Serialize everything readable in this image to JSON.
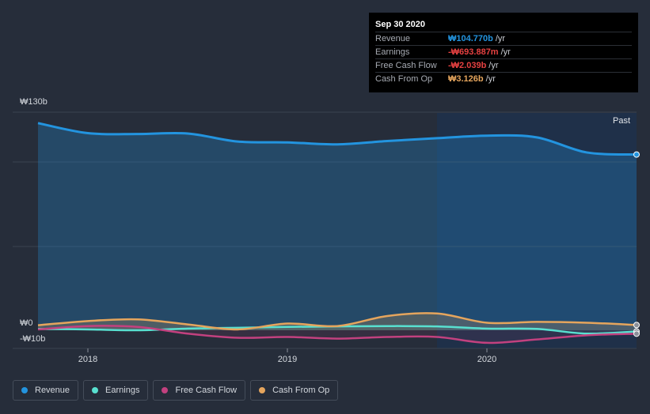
{
  "colors": {
    "background": "#262d3a",
    "revenue": "#2394df",
    "earnings": "#58e0d0",
    "free_cash_flow": "#c2417f",
    "cash_from_op": "#e5a55d",
    "grid": "#3a4250"
  },
  "tooltip": {
    "date": "Sep 30 2020",
    "rows": [
      {
        "label": "Revenue",
        "value": "₩104.770b",
        "unit": "/yr",
        "color": "#2394df"
      },
      {
        "label": "Earnings",
        "value": "-₩693.887m",
        "unit": "/yr",
        "color": "#e64141"
      },
      {
        "label": "Free Cash Flow",
        "value": "-₩2.039b",
        "unit": "/yr",
        "color": "#e64141"
      },
      {
        "label": "Cash From Op",
        "value": "₩3.126b",
        "unit": "/yr",
        "color": "#e5a55d"
      }
    ]
  },
  "legend": [
    {
      "label": "Revenue",
      "color": "#2394df"
    },
    {
      "label": "Earnings",
      "color": "#58e0d0"
    },
    {
      "label": "Free Cash Flow",
      "color": "#c2417f"
    },
    {
      "label": "Cash From Op",
      "color": "#e5a55d"
    }
  ],
  "chart_data": {
    "type": "area",
    "title": "",
    "xlabel": "",
    "ylabel": "",
    "y_tick_labels": [
      "₩130b",
      "₩0",
      "-₩10b"
    ],
    "x_tick_labels": [
      "2018",
      "2019",
      "2020"
    ],
    "past_label": "Past",
    "ylim": [
      -10,
      130
    ],
    "xlim": [
      2017.75,
      2020.75
    ],
    "past_region_start": 2019.75,
    "x": [
      2017.75,
      2018.0,
      2018.25,
      2018.5,
      2018.75,
      2019.0,
      2019.25,
      2019.5,
      2019.75,
      2020.0,
      2020.25,
      2020.5,
      2020.75
    ],
    "series": [
      {
        "name": "Revenue",
        "values": [
          123.5,
          117.5,
          117.0,
          117.3,
          112.5,
          112.0,
          110.8,
          112.8,
          114.5,
          116.0,
          115.0,
          106.0,
          104.77
        ]
      },
      {
        "name": "Earnings",
        "values": [
          0.8,
          0.5,
          0.0,
          1.0,
          1.5,
          2.0,
          2.3,
          2.5,
          2.3,
          1.0,
          0.8,
          -2.0,
          -0.694
        ]
      },
      {
        "name": "Free Cash Flow",
        "values": [
          0.5,
          2.5,
          2.0,
          -2.0,
          -4.5,
          -4.0,
          -5.0,
          -4.0,
          -4.0,
          -7.5,
          -5.5,
          -3.0,
          -2.039
        ]
      },
      {
        "name": "Cash From Op",
        "values": [
          3.0,
          5.5,
          6.5,
          3.5,
          0.5,
          4.0,
          2.5,
          8.5,
          10.0,
          4.5,
          5.0,
          4.5,
          3.126
        ]
      }
    ]
  }
}
